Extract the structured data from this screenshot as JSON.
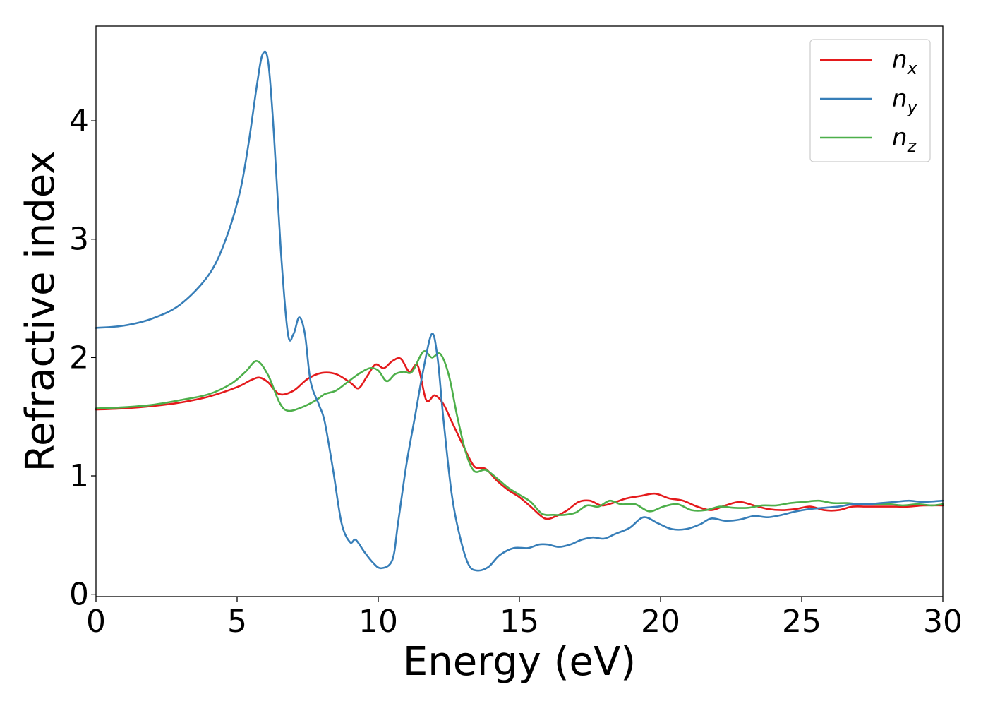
{
  "chart_data": {
    "type": "line",
    "title": "",
    "xlabel": "Energy (eV)",
    "ylabel": "Refractive index",
    "xlim": [
      0,
      30
    ],
    "ylim": [
      -0.02,
      4.8
    ],
    "xticks": [
      0,
      5,
      10,
      15,
      20,
      25,
      30
    ],
    "yticks": [
      0,
      1,
      2,
      3,
      4
    ],
    "grid": false,
    "legend_position": "top-right",
    "series": [
      {
        "name": "n_x",
        "base": "n",
        "sub": "x",
        "color": "#e41a1c",
        "points": [
          [
            0,
            1.56
          ],
          [
            1,
            1.57
          ],
          [
            2,
            1.59
          ],
          [
            3,
            1.62
          ],
          [
            4,
            1.67
          ],
          [
            5,
            1.75
          ],
          [
            5.5,
            1.81
          ],
          [
            5.8,
            1.83
          ],
          [
            6.1,
            1.79
          ],
          [
            6.5,
            1.69
          ],
          [
            7,
            1.72
          ],
          [
            7.5,
            1.82
          ],
          [
            8,
            1.87
          ],
          [
            8.5,
            1.86
          ],
          [
            9,
            1.79
          ],
          [
            9.3,
            1.74
          ],
          [
            9.6,
            1.84
          ],
          [
            9.9,
            1.94
          ],
          [
            10.2,
            1.91
          ],
          [
            10.5,
            1.97
          ],
          [
            10.8,
            1.99
          ],
          [
            11.1,
            1.88
          ],
          [
            11.4,
            1.93
          ],
          [
            11.7,
            1.64
          ],
          [
            12,
            1.68
          ],
          [
            12.3,
            1.61
          ],
          [
            12.6,
            1.46
          ],
          [
            13,
            1.26
          ],
          [
            13.4,
            1.08
          ],
          [
            13.8,
            1.06
          ],
          [
            14.2,
            0.96
          ],
          [
            14.6,
            0.88
          ],
          [
            15,
            0.82
          ],
          [
            15.4,
            0.74
          ],
          [
            15.9,
            0.64
          ],
          [
            16.3,
            0.66
          ],
          [
            16.7,
            0.71
          ],
          [
            17.1,
            0.78
          ],
          [
            17.5,
            0.79
          ],
          [
            17.9,
            0.75
          ],
          [
            18.3,
            0.77
          ],
          [
            18.8,
            0.81
          ],
          [
            19.3,
            0.83
          ],
          [
            19.8,
            0.85
          ],
          [
            20.3,
            0.81
          ],
          [
            20.8,
            0.79
          ],
          [
            21.3,
            0.74
          ],
          [
            21.8,
            0.71
          ],
          [
            22.3,
            0.75
          ],
          [
            22.8,
            0.78
          ],
          [
            23.3,
            0.75
          ],
          [
            23.8,
            0.72
          ],
          [
            24.3,
            0.71
          ],
          [
            24.8,
            0.72
          ],
          [
            25.3,
            0.74
          ],
          [
            25.8,
            0.71
          ],
          [
            26.3,
            0.71
          ],
          [
            26.8,
            0.74
          ],
          [
            27.3,
            0.74
          ],
          [
            27.8,
            0.74
          ],
          [
            28.3,
            0.74
          ],
          [
            28.8,
            0.74
          ],
          [
            29.3,
            0.75
          ],
          [
            30,
            0.75
          ]
        ]
      },
      {
        "name": "n_y",
        "base": "n",
        "sub": "y",
        "color": "#377eb8",
        "points": [
          [
            0,
            2.25
          ],
          [
            1,
            2.27
          ],
          [
            2,
            2.33
          ],
          [
            3,
            2.45
          ],
          [
            4,
            2.7
          ],
          [
            4.6,
            3.0
          ],
          [
            5.1,
            3.4
          ],
          [
            5.4,
            3.8
          ],
          [
            5.7,
            4.3
          ],
          [
            5.9,
            4.56
          ],
          [
            6.1,
            4.5
          ],
          [
            6.3,
            3.9
          ],
          [
            6.55,
            2.9
          ],
          [
            6.8,
            2.2
          ],
          [
            7.0,
            2.2
          ],
          [
            7.2,
            2.34
          ],
          [
            7.4,
            2.2
          ],
          [
            7.6,
            1.8
          ],
          [
            7.9,
            1.6
          ],
          [
            8.1,
            1.46
          ],
          [
            8.4,
            1.05
          ],
          [
            8.7,
            0.6
          ],
          [
            9.0,
            0.44
          ],
          [
            9.2,
            0.46
          ],
          [
            9.5,
            0.36
          ],
          [
            9.8,
            0.27
          ],
          [
            10.1,
            0.22
          ],
          [
            10.5,
            0.29
          ],
          [
            10.7,
            0.6
          ],
          [
            11.0,
            1.1
          ],
          [
            11.3,
            1.5
          ],
          [
            11.6,
            1.9
          ],
          [
            11.9,
            2.2
          ],
          [
            12.1,
            2.0
          ],
          [
            12.3,
            1.5
          ],
          [
            12.6,
            0.85
          ],
          [
            12.9,
            0.48
          ],
          [
            13.2,
            0.25
          ],
          [
            13.5,
            0.2
          ],
          [
            13.9,
            0.23
          ],
          [
            14.3,
            0.33
          ],
          [
            14.8,
            0.39
          ],
          [
            15.3,
            0.39
          ],
          [
            15.7,
            0.42
          ],
          [
            16.0,
            0.42
          ],
          [
            16.4,
            0.4
          ],
          [
            16.8,
            0.42
          ],
          [
            17.2,
            0.46
          ],
          [
            17.6,
            0.48
          ],
          [
            18.0,
            0.47
          ],
          [
            18.4,
            0.51
          ],
          [
            18.9,
            0.56
          ],
          [
            19.4,
            0.65
          ],
          [
            19.9,
            0.6
          ],
          [
            20.4,
            0.55
          ],
          [
            20.9,
            0.55
          ],
          [
            21.4,
            0.59
          ],
          [
            21.8,
            0.64
          ],
          [
            22.3,
            0.62
          ],
          [
            22.8,
            0.63
          ],
          [
            23.3,
            0.66
          ],
          [
            23.8,
            0.65
          ],
          [
            24.3,
            0.67
          ],
          [
            24.8,
            0.7
          ],
          [
            25.3,
            0.72
          ],
          [
            25.8,
            0.73
          ],
          [
            26.3,
            0.74
          ],
          [
            26.8,
            0.76
          ],
          [
            27.3,
            0.76
          ],
          [
            27.8,
            0.77
          ],
          [
            28.3,
            0.78
          ],
          [
            28.8,
            0.79
          ],
          [
            29.3,
            0.78
          ],
          [
            30,
            0.79
          ]
        ]
      },
      {
        "name": "n_z",
        "base": "n",
        "sub": "z",
        "color": "#4daf4a",
        "points": [
          [
            0,
            1.57
          ],
          [
            1,
            1.58
          ],
          [
            2,
            1.6
          ],
          [
            3,
            1.64
          ],
          [
            4,
            1.69
          ],
          [
            4.8,
            1.78
          ],
          [
            5.3,
            1.88
          ],
          [
            5.7,
            1.97
          ],
          [
            6.1,
            1.85
          ],
          [
            6.5,
            1.62
          ],
          [
            6.8,
            1.55
          ],
          [
            7.3,
            1.58
          ],
          [
            7.8,
            1.64
          ],
          [
            8.1,
            1.69
          ],
          [
            8.5,
            1.72
          ],
          [
            8.9,
            1.79
          ],
          [
            9.3,
            1.86
          ],
          [
            9.7,
            1.91
          ],
          [
            10.0,
            1.89
          ],
          [
            10.3,
            1.8
          ],
          [
            10.6,
            1.86
          ],
          [
            10.9,
            1.88
          ],
          [
            11.2,
            1.88
          ],
          [
            11.6,
            2.05
          ],
          [
            11.9,
            2.0
          ],
          [
            12.2,
            2.03
          ],
          [
            12.5,
            1.85
          ],
          [
            12.8,
            1.5
          ],
          [
            13.1,
            1.2
          ],
          [
            13.4,
            1.04
          ],
          [
            13.8,
            1.05
          ],
          [
            14.2,
            0.98
          ],
          [
            14.6,
            0.9
          ],
          [
            15.0,
            0.84
          ],
          [
            15.4,
            0.78
          ],
          [
            15.8,
            0.68
          ],
          [
            16.2,
            0.67
          ],
          [
            16.6,
            0.67
          ],
          [
            17.0,
            0.69
          ],
          [
            17.4,
            0.75
          ],
          [
            17.8,
            0.74
          ],
          [
            18.2,
            0.79
          ],
          [
            18.6,
            0.76
          ],
          [
            19.1,
            0.76
          ],
          [
            19.6,
            0.7
          ],
          [
            20.1,
            0.74
          ],
          [
            20.6,
            0.76
          ],
          [
            21.1,
            0.71
          ],
          [
            21.6,
            0.71
          ],
          [
            22.1,
            0.74
          ],
          [
            22.6,
            0.73
          ],
          [
            23.1,
            0.73
          ],
          [
            23.6,
            0.75
          ],
          [
            24.1,
            0.75
          ],
          [
            24.6,
            0.77
          ],
          [
            25.1,
            0.78
          ],
          [
            25.6,
            0.79
          ],
          [
            26.1,
            0.77
          ],
          [
            26.6,
            0.77
          ],
          [
            27.1,
            0.76
          ],
          [
            27.6,
            0.76
          ],
          [
            28.1,
            0.76
          ],
          [
            28.6,
            0.75
          ],
          [
            29.1,
            0.76
          ],
          [
            29.6,
            0.75
          ],
          [
            30,
            0.76
          ]
        ]
      }
    ]
  }
}
